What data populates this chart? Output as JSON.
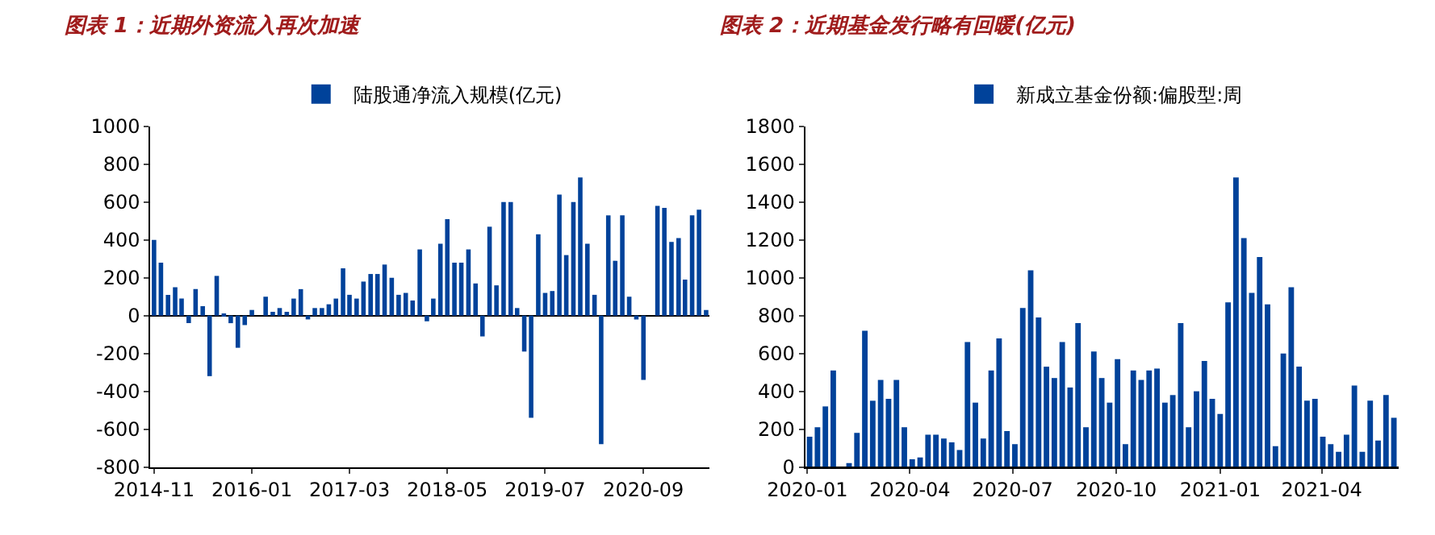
{
  "chart_data": [
    {
      "type": "bar",
      "title": "图表 1：近期外资流入再次加速",
      "x": [
        "2014-11",
        "2014-12",
        "2015-01",
        "2015-02",
        "2015-03",
        "2015-04",
        "2015-05",
        "2015-06",
        "2015-07",
        "2015-08",
        "2015-09",
        "2015-10",
        "2015-11",
        "2015-12",
        "2016-01",
        "2016-02",
        "2016-03",
        "2016-04",
        "2016-05",
        "2016-06",
        "2016-07",
        "2016-08",
        "2016-09",
        "2016-10",
        "2016-11",
        "2016-12",
        "2017-01",
        "2017-02",
        "2017-03",
        "2017-04",
        "2017-05",
        "2017-06",
        "2017-07",
        "2017-08",
        "2017-09",
        "2017-10",
        "2017-11",
        "2017-12",
        "2018-01",
        "2018-02",
        "2018-03",
        "2018-04",
        "2018-05",
        "2018-06",
        "2018-07",
        "2018-08",
        "2018-09",
        "2018-10",
        "2018-11",
        "2018-12",
        "2019-01",
        "2019-02",
        "2019-03",
        "2019-04",
        "2019-05",
        "2019-06",
        "2019-07",
        "2019-08",
        "2019-09",
        "2019-10",
        "2019-11",
        "2019-12",
        "2020-01",
        "2020-02",
        "2020-03",
        "2020-04",
        "2020-05",
        "2020-06",
        "2020-07",
        "2020-08",
        "2020-09",
        "2020-10",
        "2020-11",
        "2020-12",
        "2021-01",
        "2021-02",
        "2021-03",
        "2021-04",
        "2021-05",
        "2021-06"
      ],
      "series": [
        {
          "name": "陆股通净流入规模(亿元)",
          "color": "#00429a",
          "values": [
            400,
            280,
            110,
            150,
            90,
            -40,
            140,
            50,
            -320,
            210,
            10,
            -40,
            -170,
            -50,
            30,
            0,
            100,
            20,
            40,
            20,
            90,
            140,
            -20,
            40,
            40,
            60,
            90,
            250,
            110,
            90,
            180,
            220,
            220,
            270,
            200,
            110,
            120,
            80,
            350,
            -30,
            90,
            380,
            510,
            280,
            280,
            350,
            170,
            -110,
            470,
            160,
            600,
            600,
            40,
            -190,
            -540,
            430,
            120,
            130,
            640,
            320,
            600,
            730,
            380,
            110,
            -680,
            530,
            290,
            530,
            100,
            -20,
            -340,
            0,
            580,
            570,
            390,
            410,
            190,
            530,
            560,
            30
          ]
        }
      ],
      "xlim": [
        "2014-10-16",
        "2021-06-16"
      ],
      "xticks": [
        "2014-11",
        "2016-01",
        "2017-03",
        "2018-05",
        "2019-07",
        "2020-09"
      ],
      "ylim": [
        -800,
        1000
      ],
      "yticks": [
        -800,
        -600,
        -400,
        -200,
        0,
        200,
        400,
        600,
        800,
        1000
      ],
      "legend": "top"
    },
    {
      "type": "bar",
      "title": "图表 2：近期基金发行略有回暖(亿元)",
      "x": [
        "2020-01-03",
        "2020-01-10",
        "2020-01-17",
        "2020-01-24",
        "2020-01-31",
        "2020-02-07",
        "2020-02-14",
        "2020-02-21",
        "2020-02-28",
        "2020-03-06",
        "2020-03-13",
        "2020-03-20",
        "2020-03-27",
        "2020-04-03",
        "2020-04-10",
        "2020-04-17",
        "2020-04-24",
        "2020-05-01",
        "2020-05-08",
        "2020-05-15",
        "2020-05-22",
        "2020-05-29",
        "2020-06-05",
        "2020-06-12",
        "2020-06-19",
        "2020-06-26",
        "2020-07-03",
        "2020-07-10",
        "2020-07-17",
        "2020-07-24",
        "2020-07-31",
        "2020-08-07",
        "2020-08-14",
        "2020-08-21",
        "2020-08-28",
        "2020-09-04",
        "2020-09-11",
        "2020-09-18",
        "2020-09-25",
        "2020-10-02",
        "2020-10-09",
        "2020-10-16",
        "2020-10-23",
        "2020-10-30",
        "2020-11-06",
        "2020-11-13",
        "2020-11-20",
        "2020-11-27",
        "2020-12-04",
        "2020-12-11",
        "2020-12-18",
        "2020-12-25",
        "2021-01-01",
        "2021-01-08",
        "2021-01-15",
        "2021-01-22",
        "2021-01-29",
        "2021-02-05",
        "2021-02-12",
        "2021-02-19",
        "2021-02-26",
        "2021-03-05",
        "2021-03-12",
        "2021-03-19",
        "2021-03-26",
        "2021-04-02",
        "2021-04-09",
        "2021-04-16",
        "2021-04-23",
        "2021-04-30",
        "2021-05-07",
        "2021-05-14",
        "2021-05-21",
        "2021-05-28",
        "2021-06-04"
      ],
      "series": [
        {
          "name": "新成立基金份额:偏股型:周",
          "color": "#00429a",
          "values": [
            160,
            210,
            320,
            510,
            0,
            20,
            180,
            720,
            350,
            460,
            360,
            460,
            210,
            40,
            50,
            170,
            170,
            150,
            130,
            90,
            660,
            340,
            150,
            510,
            680,
            190,
            120,
            840,
            1040,
            790,
            530,
            470,
            660,
            420,
            760,
            210,
            610,
            470,
            340,
            570,
            120,
            510,
            460,
            510,
            520,
            340,
            380,
            760,
            210,
            400,
            560,
            360,
            280,
            870,
            1530,
            1210,
            920,
            1110,
            860,
            110,
            600,
            950,
            530,
            350,
            360,
            160,
            120,
            80,
            170,
            430,
            80,
            350,
            140,
            380,
            260
          ]
        }
      ],
      "xlim": [
        "2019-12-30",
        "2021-06-08"
      ],
      "xticks": [
        "2020-01",
        "2020-04",
        "2020-07",
        "2020-10",
        "2021-01",
        "2021-04"
      ],
      "ylim": [
        0,
        1800
      ],
      "yticks": [
        0,
        200,
        400,
        600,
        800,
        1000,
        1200,
        1400,
        1600,
        1800
      ],
      "legend": "top"
    }
  ]
}
